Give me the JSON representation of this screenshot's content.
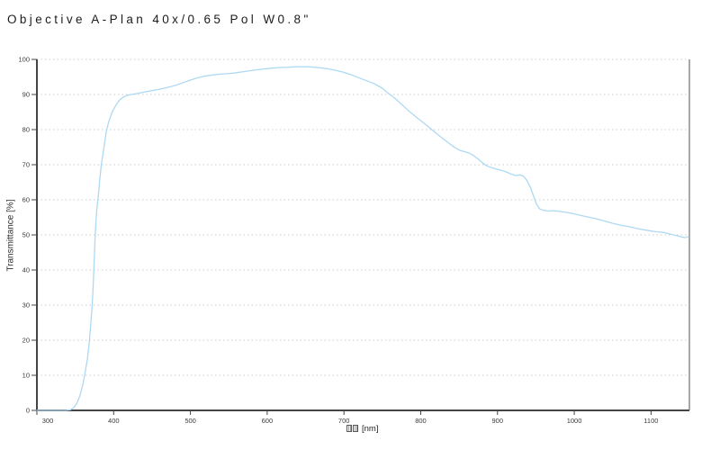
{
  "title": "Objective A-Plan 40x/0.65 Pol W0.8\"",
  "xlabel_unit": "[nm]",
  "colors": {
    "curve": "#aed9f2",
    "grid": "#cdcdcd",
    "axis": "#454545",
    "tick_text": "#3a3a3a",
    "title_text": "#1c1c1c",
    "background": "#ffffff"
  },
  "chart_data": {
    "type": "line",
    "title": "Objective A-Plan 40x/0.65 Pol W0.8\"",
    "xlabel": "□□ [nm]",
    "xlabel_missing_glyphs": 2,
    "ylabel": "Transmittance [%]",
    "xlim": [
      300,
      1150
    ],
    "ylim": [
      0,
      100
    ],
    "x_ticks": [
      300,
      400,
      500,
      600,
      700,
      800,
      900,
      1000,
      1100
    ],
    "y_ticks": [
      0,
      10,
      20,
      30,
      40,
      50,
      60,
      70,
      80,
      90,
      100
    ],
    "grid": "horizontal dashed lines at every 10%",
    "legend": "none",
    "series": [
      {
        "name": "Transmittance",
        "color": "#aed9f2",
        "points": [
          [
            300,
            0
          ],
          [
            338,
            0
          ],
          [
            344,
            0.2
          ],
          [
            348,
            0.8
          ],
          [
            352,
            2
          ],
          [
            356,
            4.2
          ],
          [
            360,
            7.5
          ],
          [
            363,
            11
          ],
          [
            366,
            15
          ],
          [
            368,
            19
          ],
          [
            370,
            24
          ],
          [
            372,
            30
          ],
          [
            373,
            34
          ],
          [
            374,
            39
          ],
          [
            375,
            45
          ],
          [
            376,
            50
          ],
          [
            377,
            54
          ],
          [
            378,
            57
          ],
          [
            380,
            61
          ],
          [
            382,
            66
          ],
          [
            384,
            70
          ],
          [
            386,
            73
          ],
          [
            388,
            76
          ],
          [
            390,
            79
          ],
          [
            393,
            81.8
          ],
          [
            396,
            83.8
          ],
          [
            399,
            85.4
          ],
          [
            403,
            87
          ],
          [
            408,
            88.5
          ],
          [
            413,
            89.3
          ],
          [
            418,
            89.8
          ],
          [
            423,
            90
          ],
          [
            429,
            90.2
          ],
          [
            435,
            90.5
          ],
          [
            442,
            90.8
          ],
          [
            450,
            91.1
          ],
          [
            458,
            91.4
          ],
          [
            466,
            91.8
          ],
          [
            474,
            92.2
          ],
          [
            482,
            92.7
          ],
          [
            491,
            93.4
          ],
          [
            500,
            94.1
          ],
          [
            510,
            94.8
          ],
          [
            521,
            95.3
          ],
          [
            533,
            95.7
          ],
          [
            545,
            95.9
          ],
          [
            557,
            96.1
          ],
          [
            569,
            96.5
          ],
          [
            581,
            96.9
          ],
          [
            593,
            97.2
          ],
          [
            605,
            97.5
          ],
          [
            617,
            97.7
          ],
          [
            629,
            97.8
          ],
          [
            641,
            97.9
          ],
          [
            653,
            97.9
          ],
          [
            665,
            97.7
          ],
          [
            677,
            97.4
          ],
          [
            689,
            96.9
          ],
          [
            700,
            96.3
          ],
          [
            710,
            95.6
          ],
          [
            720,
            94.7
          ],
          [
            730,
            93.9
          ],
          [
            740,
            93
          ],
          [
            750,
            91.8
          ],
          [
            758,
            90.3
          ],
          [
            766,
            89
          ],
          [
            775,
            87.2
          ],
          [
            785,
            85.2
          ],
          [
            795,
            83.4
          ],
          [
            805,
            81.7
          ],
          [
            815,
            79.9
          ],
          [
            825,
            78.1
          ],
          [
            835,
            76.4
          ],
          [
            845,
            74.8
          ],
          [
            852,
            74
          ],
          [
            858,
            73.7
          ],
          [
            864,
            73.2
          ],
          [
            870,
            72.4
          ],
          [
            876,
            71.4
          ],
          [
            881,
            70.4
          ],
          [
            886,
            69.7
          ],
          [
            892,
            69.2
          ],
          [
            898,
            68.8
          ],
          [
            905,
            68.4
          ],
          [
            912,
            67.9
          ],
          [
            918,
            67.3
          ],
          [
            924,
            66.9
          ],
          [
            929,
            67.1
          ],
          [
            934,
            66.7
          ],
          [
            938,
            65.6
          ],
          [
            943,
            63.5
          ],
          [
            947,
            61
          ],
          [
            951,
            58.7
          ],
          [
            955,
            57.4
          ],
          [
            960,
            57
          ],
          [
            966,
            56.8
          ],
          [
            973,
            56.9
          ],
          [
            981,
            56.7
          ],
          [
            990,
            56.4
          ],
          [
            1000,
            56
          ],
          [
            1010,
            55.5
          ],
          [
            1020,
            55
          ],
          [
            1030,
            54.5
          ],
          [
            1040,
            53.9
          ],
          [
            1050,
            53.3
          ],
          [
            1060,
            52.8
          ],
          [
            1070,
            52.4
          ],
          [
            1080,
            51.9
          ],
          [
            1090,
            51.5
          ],
          [
            1100,
            51.1
          ],
          [
            1107,
            50.9
          ],
          [
            1113,
            50.8
          ],
          [
            1119,
            50.6
          ],
          [
            1126,
            50.2
          ],
          [
            1133,
            49.8
          ],
          [
            1140,
            49.4
          ],
          [
            1145,
            49.2
          ],
          [
            1148,
            49.5
          ]
        ]
      }
    ]
  }
}
